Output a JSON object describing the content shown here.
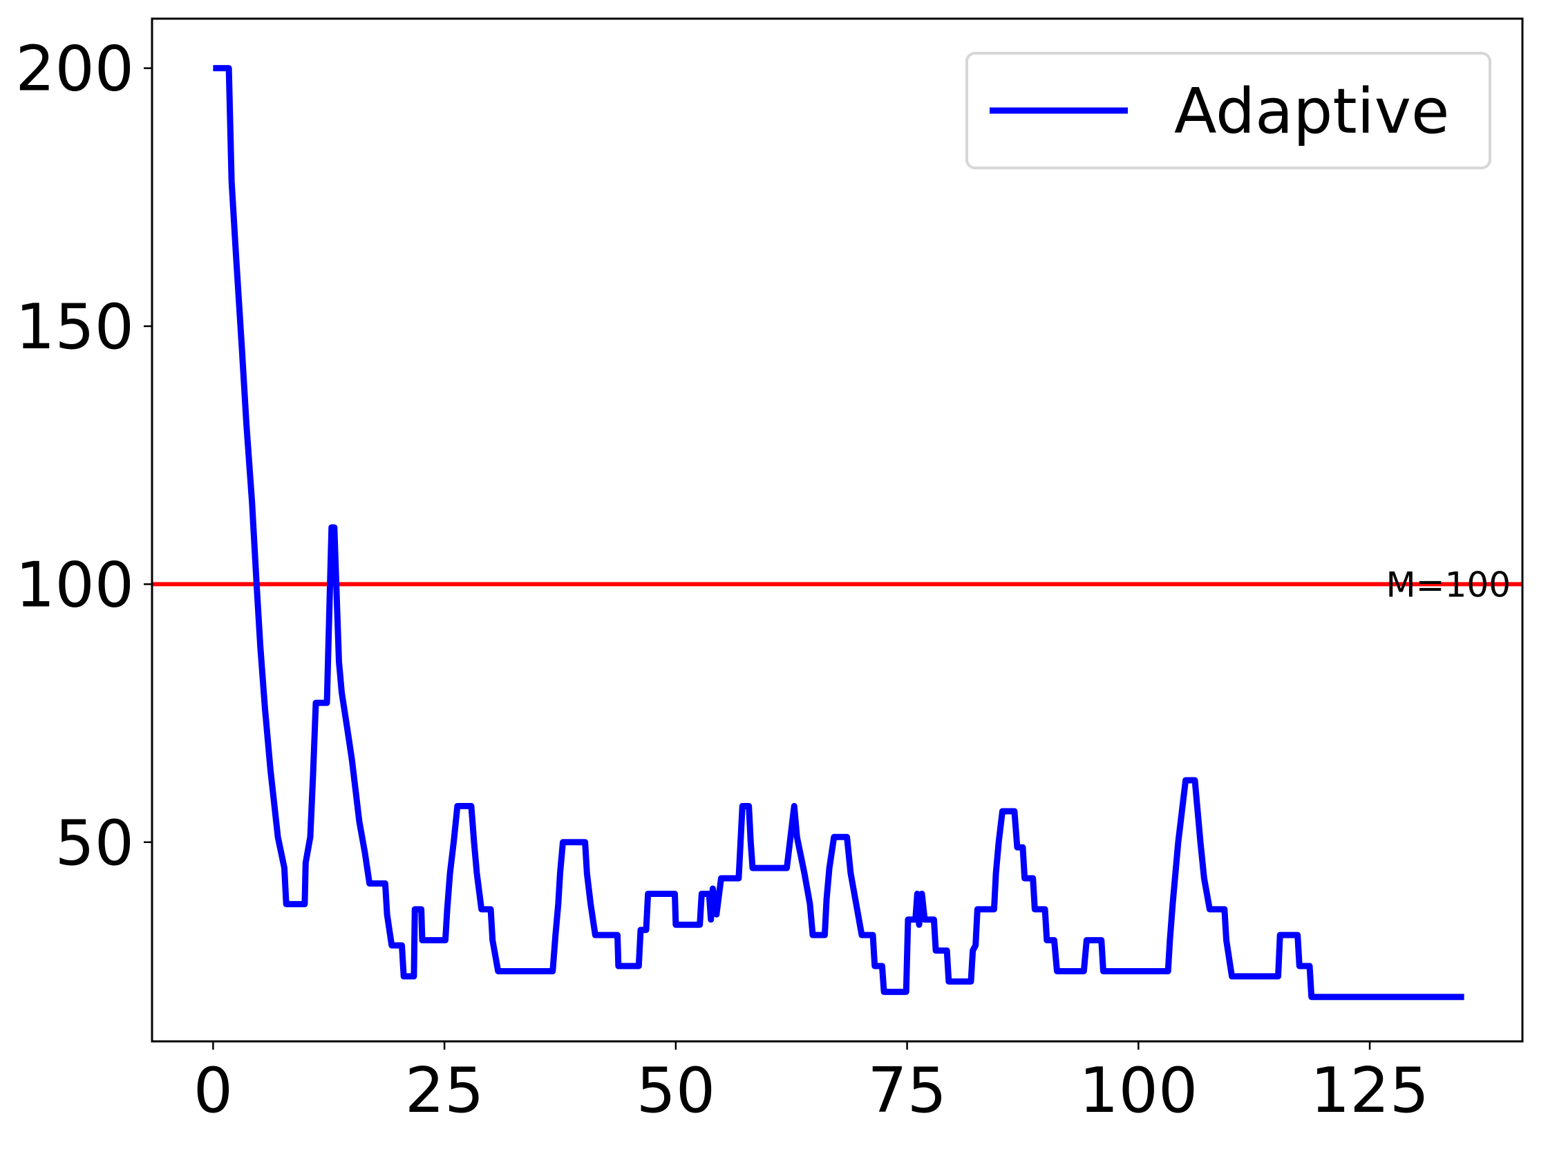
{
  "chart_data": {
    "type": "line",
    "x": [
      0,
      1.7,
      2,
      2.5,
      3.1,
      3.6,
      4.2,
      4.7,
      5.1,
      5.6,
      6.2,
      7,
      7.7,
      7.9,
      9.9,
      10,
      10.5,
      10.8,
      11.1,
      12.3,
      12.4,
      12.8,
      13.1,
      13.6,
      13.9,
      14.5,
      15,
      15.4,
      15.8,
      16.4,
      16.9,
      18.6,
      18.8,
      19.3,
      20.4,
      20.6,
      21.7,
      21.8,
      22.5,
      22.6,
      25.1,
      25.3,
      25.6,
      26,
      26.4,
      27.9,
      28.2,
      28.5,
      29,
      30,
      30.2,
      30.8,
      36.7,
      37,
      37.3,
      37.5,
      37.8,
      40.2,
      40.4,
      40.8,
      41.3,
      43.7,
      43.8,
      46,
      46.2,
      46.8,
      47,
      49.9,
      50,
      52.6,
      52.8,
      53.6,
      53.8,
      54,
      54.4,
      54.9,
      56.8,
      57,
      57.2,
      57.9,
      58.1,
      58.3,
      62,
      62.4,
      62.8,
      63.1,
      63.9,
      64.5,
      64.8,
      66.1,
      66.3,
      66.6,
      67.1,
      68.5,
      68.9,
      69.5,
      70.1,
      71.3,
      71.5,
      72.3,
      72.5,
      74.9,
      75.1,
      75.9,
      76.1,
      76.3,
      76.6,
      76.9,
      77.9,
      78.1,
      79.3,
      79.5,
      81.9,
      82.1,
      82.4,
      82.6,
      84.4,
      84.6,
      84.9,
      85.3,
      86.6,
      86.9,
      87.5,
      87.7,
      88.6,
      88.8,
      89.9,
      90.1,
      90.9,
      91.2,
      94.1,
      94.4,
      96,
      96.2,
      103.2,
      103.4,
      103.7,
      104,
      104.3,
      104.7,
      105.1,
      106.1,
      106.4,
      106.7,
      107.1,
      107.7,
      109.3,
      109.5,
      110.1,
      115.1,
      115.3,
      117.2,
      117.4,
      118.5,
      118.7,
      135.2
    ],
    "series": [
      {
        "name": "Adaptive",
        "color": "#0000ff",
        "values": [
          200,
          200,
          178,
          163,
          146,
          131,
          116,
          100,
          88,
          76,
          64,
          51,
          45,
          38,
          38,
          46,
          51,
          63,
          77,
          77,
          84,
          111,
          111,
          85,
          79,
          72,
          66,
          60,
          54,
          48,
          42,
          42,
          36,
          30,
          30,
          24,
          24,
          37,
          37,
          31,
          31,
          37,
          44,
          50,
          57,
          57,
          50,
          44,
          37,
          37,
          31,
          25,
          25,
          32,
          38,
          44,
          50,
          50,
          44,
          38,
          32,
          32,
          26,
          26,
          33,
          33,
          40,
          40,
          34,
          34,
          40,
          40,
          35,
          41,
          36,
          43,
          43,
          50,
          57,
          57,
          50,
          45,
          45,
          51,
          57,
          51,
          44,
          38,
          32,
          32,
          39,
          45,
          51,
          51,
          44,
          38,
          32,
          32,
          26,
          26,
          21,
          21,
          35,
          35,
          40,
          34,
          40,
          35,
          35,
          29,
          29,
          23,
          23,
          29,
          30,
          37,
          37,
          44,
          50,
          56,
          56,
          49,
          49,
          43,
          43,
          37,
          37,
          31,
          31,
          25,
          25,
          31,
          31,
          25,
          25,
          31,
          38,
          44,
          50,
          56,
          62,
          62,
          56,
          50,
          43,
          37,
          37,
          31,
          24,
          24,
          32,
          32,
          26,
          26,
          20,
          20
        ]
      }
    ],
    "hline": {
      "y": 100,
      "label": "M=100",
      "color": "#ff0000"
    },
    "xlim": [
      -6.6,
      141.5
    ],
    "xticks": [
      0,
      25,
      50,
      75,
      100,
      125
    ],
    "ylim": [
      11.4,
      209.6
    ],
    "yticks": [
      50,
      100,
      150,
      200
    ],
    "legend": "upper right"
  }
}
